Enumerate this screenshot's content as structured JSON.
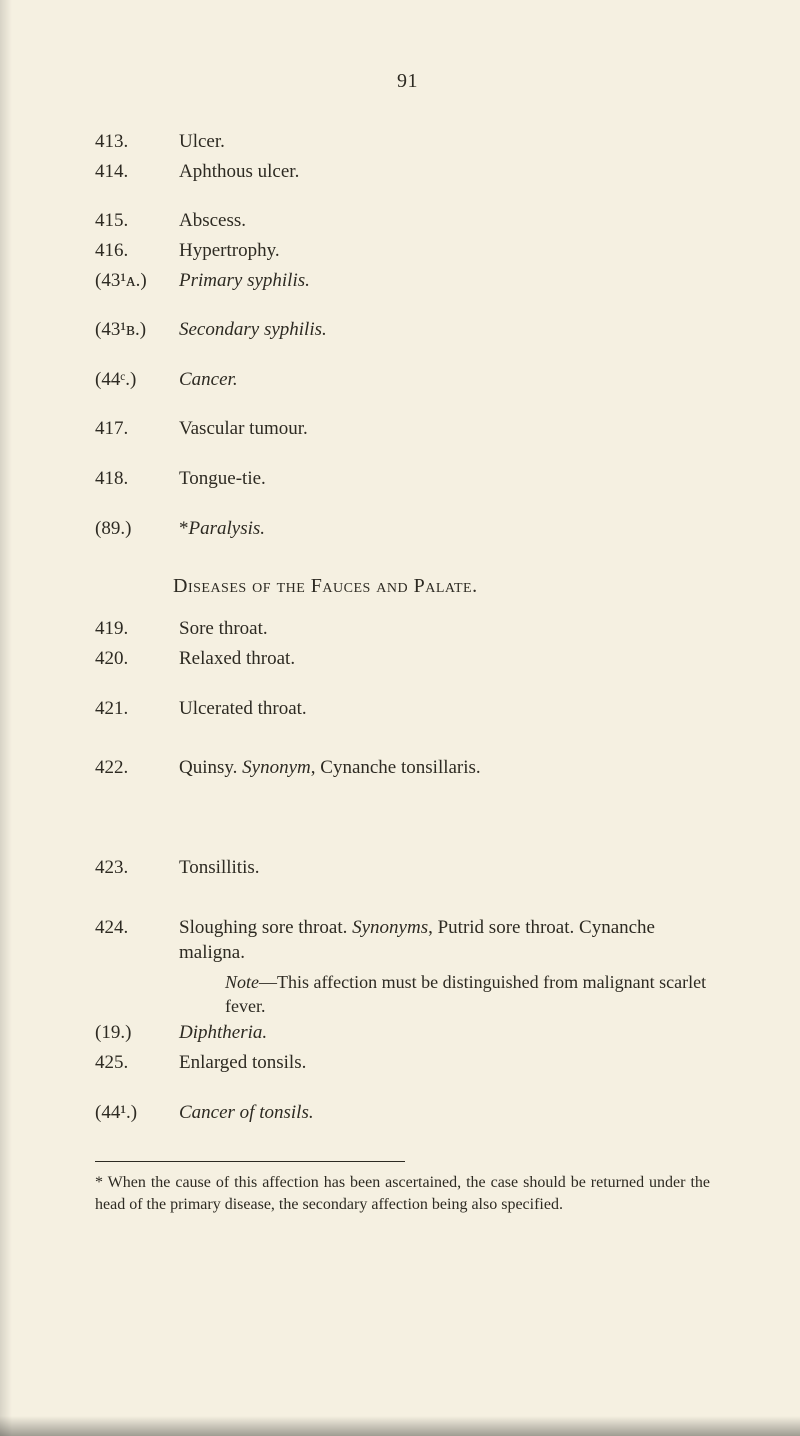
{
  "page_number": "91",
  "entries_block_a": [
    {
      "num": "413.",
      "text": "Ulcer.",
      "italic": false
    },
    {
      "num": "414.",
      "text": "Aphthous ulcer.",
      "italic": false
    }
  ],
  "entries_block_b": [
    {
      "num": "415.",
      "text": "Abscess.",
      "italic": false
    },
    {
      "num": "416.",
      "text": "Hypertrophy.",
      "italic": false
    },
    {
      "num": "(43¹ᴀ.)",
      "text": "Primary syphilis.",
      "italic": true
    }
  ],
  "entry_43b": {
    "num": "(43¹ʙ.)",
    "text": "Secondary syphilis.",
    "italic": true
  },
  "entry_44c": {
    "num": "(44ᶜ.)",
    "text": "Cancer.",
    "italic": true
  },
  "entry_417": {
    "num": "417.",
    "text": "Vascular tumour.",
    "italic": false
  },
  "entry_418": {
    "num": "418.",
    "text": "Tongue-tie.",
    "italic": false
  },
  "entry_89": {
    "num": "(89.)",
    "prefix": "*",
    "text": "Paralysis.",
    "italic": true
  },
  "section_title": "Diseases of the Fauces and Palate.",
  "entries_block_c": [
    {
      "num": "419.",
      "text": "Sore throat.",
      "italic": false
    },
    {
      "num": "420.",
      "text": "Relaxed throat.",
      "italic": false
    }
  ],
  "entry_421": {
    "num": "421.",
    "text": "Ulcerated throat.",
    "italic": false
  },
  "entry_422": {
    "num": "422.",
    "lead": "Quinsy.  ",
    "syn_label": "Synonym",
    "syn_rest": ", Cynanche tonsillaris."
  },
  "entry_423": {
    "num": "423.",
    "text": "Tonsillitis.",
    "italic": false
  },
  "entry_424": {
    "num": "424.",
    "lead": "Sloughing sore throat.  ",
    "syn_label": "Synonyms",
    "syn_rest": ", Putrid sore throat. Cynanche maligna."
  },
  "note_424": {
    "label": "Note",
    "text": "—This affection must be distinguished from malignant scarlet fever."
  },
  "entry_19": {
    "num": "(19.)",
    "text": "Diphtheria.",
    "italic": true
  },
  "entry_425": {
    "num": "425.",
    "text": "Enlarged tonsils.",
    "italic": false
  },
  "entry_441": {
    "num": "(44¹.)",
    "text": "Cancer of tonsils.",
    "italic": true
  },
  "footnote": "* When the cause of this affection has been ascertained, the case should be returned under the head of the primary disease, the secondary affection being also specified."
}
